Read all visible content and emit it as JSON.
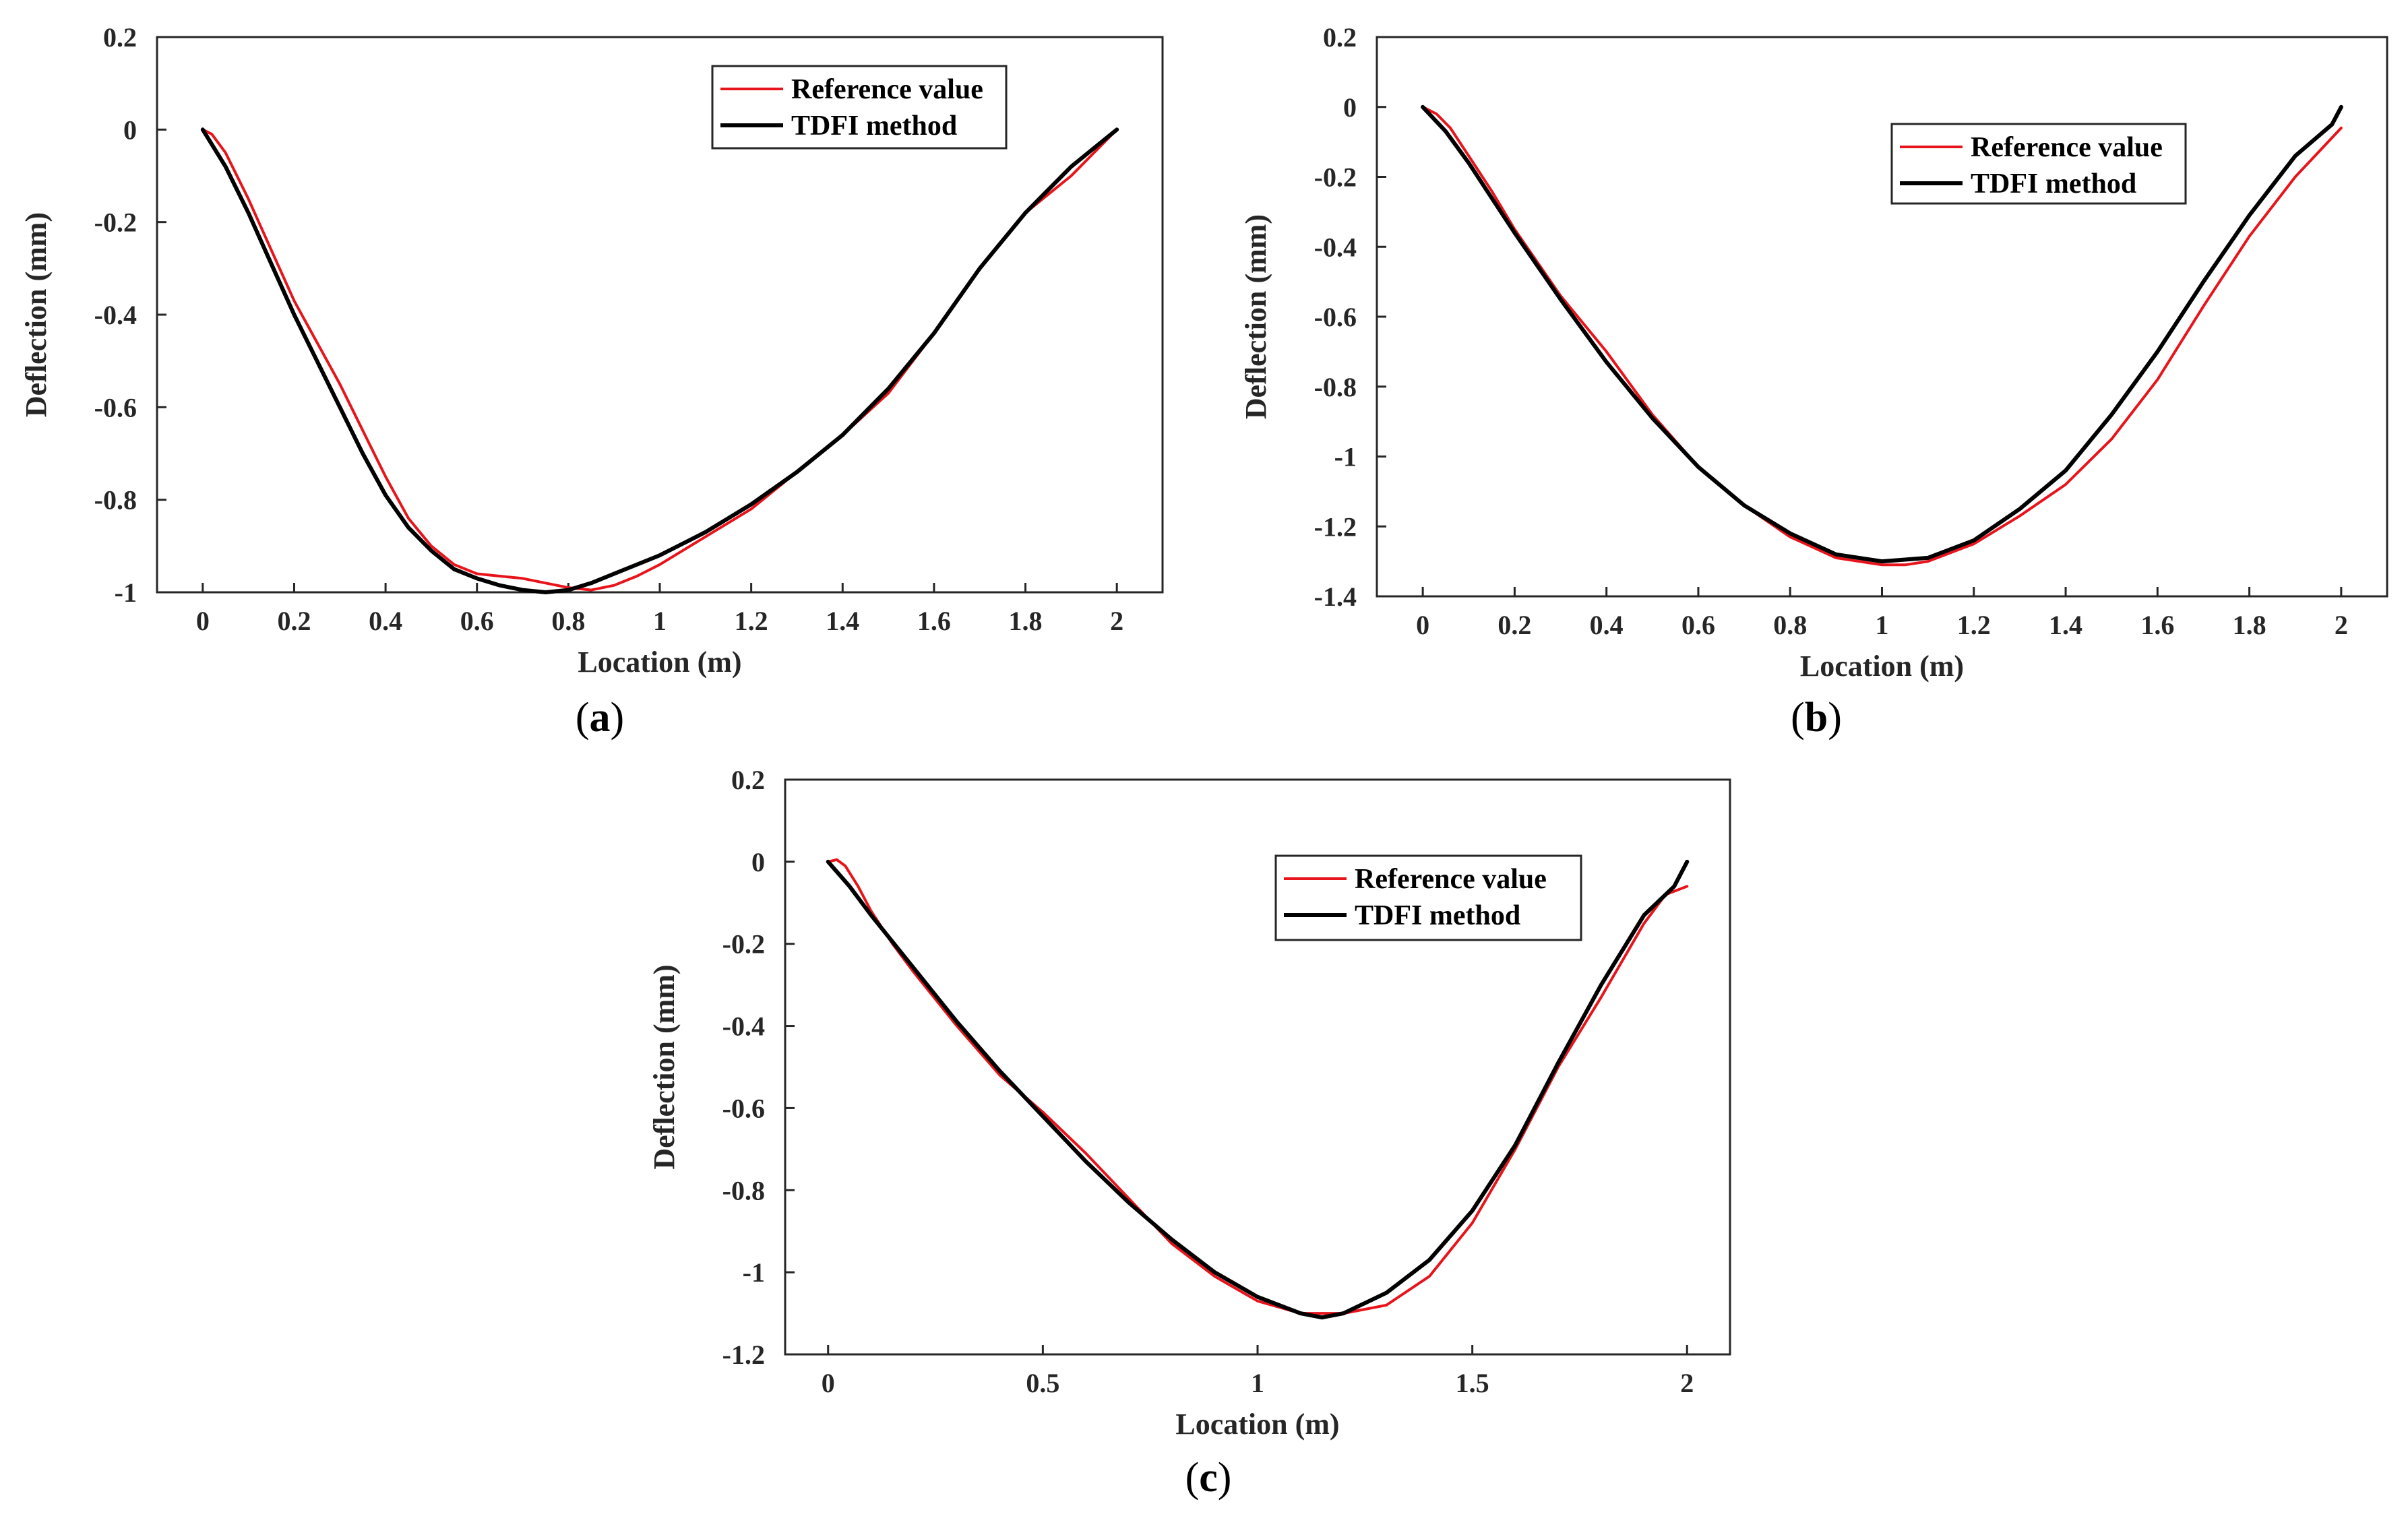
{
  "chart_data": [
    {
      "panel_label": "a",
      "type": "line",
      "xlabel": "Location (m)",
      "ylabel": "Deflection (mm)",
      "xlim": [
        -0.1,
        2.1
      ],
      "ylim": [
        -1,
        0.2
      ],
      "xticks": [
        0,
        0.2,
        0.4,
        0.6,
        0.8,
        1,
        1.2,
        1.4,
        1.6,
        1.8,
        2
      ],
      "xtick_labels": [
        "0",
        "0.2",
        "0.4",
        "0.6",
        "0.8",
        "1",
        "1.2",
        "1.4",
        "1.6",
        "1.8",
        "2"
      ],
      "yticks": [
        -1,
        -0.8,
        -0.6,
        -0.4,
        -0.2,
        0,
        0.2
      ],
      "ytick_labels": [
        "-1",
        "-0.8",
        "-0.6",
        "-0.4",
        "-0.2",
        "0",
        "0.2"
      ],
      "legend_position": "top-right",
      "series": [
        {
          "name": "Reference value",
          "color": "#e8141b",
          "x": [
            0,
            0.02,
            0.05,
            0.1,
            0.15,
            0.2,
            0.25,
            0.3,
            0.35,
            0.4,
            0.45,
            0.5,
            0.55,
            0.6,
            0.65,
            0.7,
            0.75,
            0.8,
            0.85,
            0.9,
            0.95,
            1.0,
            1.1,
            1.2,
            1.3,
            1.4,
            1.5,
            1.6,
            1.7,
            1.8,
            1.9,
            2.0
          ],
          "y": [
            0,
            -0.01,
            -0.05,
            -0.15,
            -0.26,
            -0.37,
            -0.46,
            -0.55,
            -0.65,
            -0.75,
            -0.84,
            -0.9,
            -0.94,
            -0.96,
            -0.965,
            -0.97,
            -0.98,
            -0.99,
            -0.995,
            -0.985,
            -0.965,
            -0.94,
            -0.88,
            -0.82,
            -0.74,
            -0.66,
            -0.57,
            -0.44,
            -0.3,
            -0.18,
            -0.1,
            0
          ]
        },
        {
          "name": "TDFI method",
          "color": "#000000",
          "x": [
            0,
            0.05,
            0.1,
            0.15,
            0.2,
            0.25,
            0.3,
            0.35,
            0.4,
            0.45,
            0.5,
            0.55,
            0.6,
            0.65,
            0.7,
            0.75,
            0.8,
            0.85,
            0.9,
            1.0,
            1.1,
            1.2,
            1.3,
            1.4,
            1.5,
            1.6,
            1.7,
            1.8,
            1.9,
            2.0
          ],
          "y": [
            0,
            -0.08,
            -0.18,
            -0.29,
            -0.4,
            -0.5,
            -0.6,
            -0.7,
            -0.79,
            -0.86,
            -0.91,
            -0.95,
            -0.97,
            -0.985,
            -0.995,
            -1.0,
            -0.995,
            -0.98,
            -0.96,
            -0.92,
            -0.87,
            -0.81,
            -0.74,
            -0.66,
            -0.56,
            -0.44,
            -0.3,
            -0.18,
            -0.08,
            0
          ]
        }
      ]
    },
    {
      "panel_label": "b",
      "type": "line",
      "xlabel": "Location (m)",
      "ylabel": "Deflection (mm)",
      "xlim": [
        -0.1,
        2.1
      ],
      "ylim": [
        -1.4,
        0.2
      ],
      "xticks": [
        0,
        0.2,
        0.4,
        0.6,
        0.8,
        1,
        1.2,
        1.4,
        1.6,
        1.8,
        2
      ],
      "xtick_labels": [
        "0",
        "0.2",
        "0.4",
        "0.6",
        "0.8",
        "1",
        "1.2",
        "1.4",
        "1.6",
        "1.8",
        "2"
      ],
      "yticks": [
        -1.4,
        -1.2,
        -1,
        -0.8,
        -0.6,
        -0.4,
        -0.2,
        0,
        0.2
      ],
      "ytick_labels": [
        "-1.4",
        "-1.2",
        "-1",
        "-0.8",
        "-0.6",
        "-0.4",
        "-0.2",
        "0",
        "0.2"
      ],
      "legend_position": "top-right",
      "series": [
        {
          "name": "Reference value",
          "color": "#e8141b",
          "x": [
            0,
            0.03,
            0.06,
            0.1,
            0.15,
            0.2,
            0.3,
            0.4,
            0.5,
            0.6,
            0.7,
            0.8,
            0.9,
            1.0,
            1.05,
            1.1,
            1.2,
            1.3,
            1.4,
            1.5,
            1.6,
            1.7,
            1.8,
            1.9,
            2.0
          ],
          "y": [
            0,
            -0.02,
            -0.06,
            -0.14,
            -0.24,
            -0.35,
            -0.54,
            -0.7,
            -0.88,
            -1.03,
            -1.14,
            -1.23,
            -1.29,
            -1.31,
            -1.31,
            -1.3,
            -1.25,
            -1.17,
            -1.08,
            -0.95,
            -0.78,
            -0.57,
            -0.37,
            -0.2,
            -0.06
          ]
        },
        {
          "name": "TDFI method",
          "color": "#000000",
          "x": [
            0,
            0.05,
            0.1,
            0.15,
            0.2,
            0.3,
            0.4,
            0.5,
            0.6,
            0.7,
            0.8,
            0.9,
            1.0,
            1.1,
            1.2,
            1.3,
            1.4,
            1.5,
            1.6,
            1.7,
            1.8,
            1.9,
            1.98,
            2.0
          ],
          "y": [
            0,
            -0.07,
            -0.16,
            -0.26,
            -0.36,
            -0.55,
            -0.73,
            -0.89,
            -1.03,
            -1.14,
            -1.22,
            -1.28,
            -1.3,
            -1.29,
            -1.24,
            -1.15,
            -1.04,
            -0.88,
            -0.7,
            -0.5,
            -0.31,
            -0.14,
            -0.05,
            0
          ]
        }
      ]
    },
    {
      "panel_label": "c",
      "type": "line",
      "xlabel": "Location (m)",
      "ylabel": "Deflection (mm)",
      "xlim": [
        -0.1,
        2.1
      ],
      "ylim": [
        -1.2,
        0.2
      ],
      "xticks": [
        0,
        0.5,
        1,
        1.5,
        2
      ],
      "xtick_labels": [
        "0",
        "0.5",
        "1",
        "1.5",
        "2"
      ],
      "yticks": [
        -1.2,
        -1,
        -0.8,
        -0.6,
        -0.4,
        -0.2,
        0,
        0.2
      ],
      "ytick_labels": [
        "-1.2",
        "-1",
        "-0.8",
        "-0.6",
        "-0.4",
        "-0.2",
        "0",
        "0.2"
      ],
      "legend_position": "top-right",
      "series": [
        {
          "name": "Reference value",
          "color": "#e8141b",
          "x": [
            0,
            0.02,
            0.04,
            0.07,
            0.1,
            0.15,
            0.2,
            0.3,
            0.4,
            0.5,
            0.6,
            0.7,
            0.8,
            0.9,
            1.0,
            1.1,
            1.2,
            1.3,
            1.4,
            1.5,
            1.6,
            1.7,
            1.8,
            1.9,
            1.95,
            2.0
          ],
          "y": [
            0,
            0.005,
            -0.01,
            -0.06,
            -0.12,
            -0.2,
            -0.27,
            -0.4,
            -0.52,
            -0.61,
            -0.71,
            -0.82,
            -0.93,
            -1.01,
            -1.07,
            -1.1,
            -1.1,
            -1.08,
            -1.01,
            -0.88,
            -0.7,
            -0.5,
            -0.33,
            -0.15,
            -0.08,
            -0.06
          ]
        },
        {
          "name": "TDFI method",
          "color": "#000000",
          "x": [
            0,
            0.05,
            0.1,
            0.2,
            0.3,
            0.4,
            0.5,
            0.6,
            0.7,
            0.8,
            0.9,
            1.0,
            1.1,
            1.15,
            1.2,
            1.3,
            1.4,
            1.5,
            1.6,
            1.7,
            1.8,
            1.9,
            1.97,
            2.0
          ],
          "y": [
            0,
            -0.06,
            -0.13,
            -0.26,
            -0.39,
            -0.51,
            -0.62,
            -0.73,
            -0.83,
            -0.92,
            -1.0,
            -1.06,
            -1.1,
            -1.11,
            -1.1,
            -1.05,
            -0.97,
            -0.85,
            -0.69,
            -0.49,
            -0.3,
            -0.13,
            -0.06,
            0
          ]
        }
      ]
    }
  ]
}
